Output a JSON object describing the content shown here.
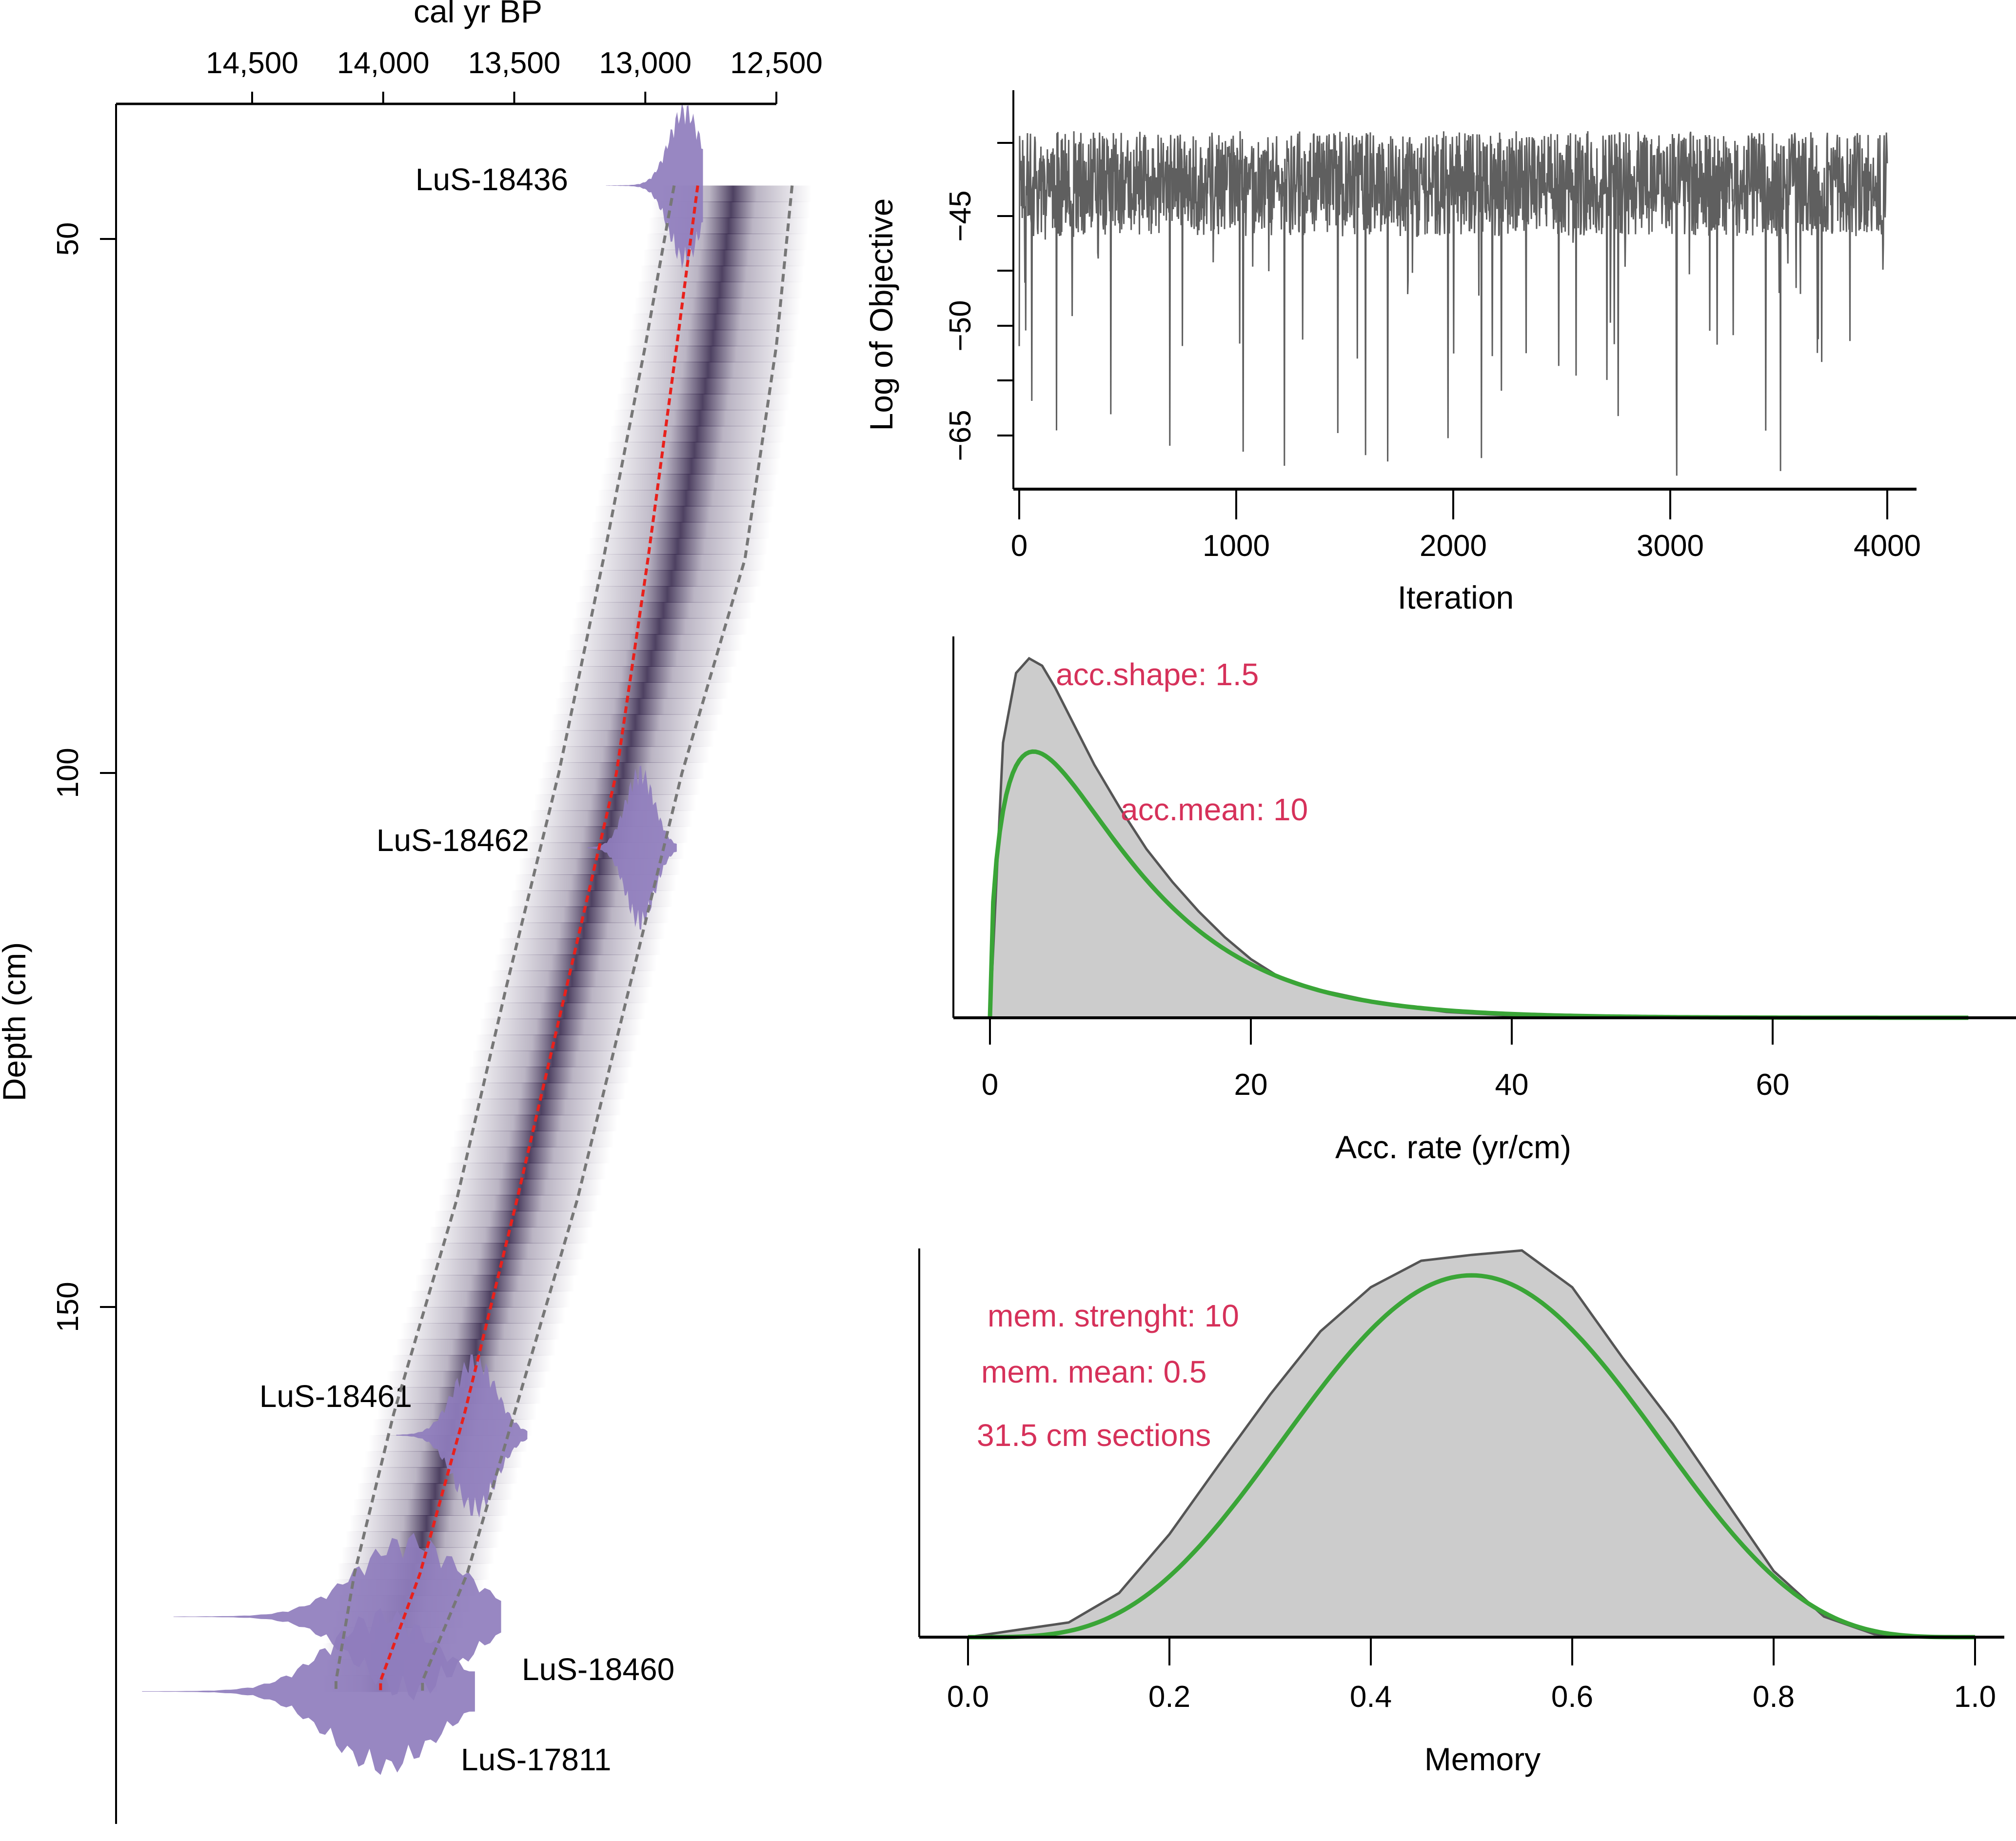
{
  "chart_data": [
    {
      "id": "age-depth",
      "type": "area",
      "title": "",
      "xlabel": "cal yr BP",
      "ylabel": "Depth (cm)",
      "x_axis_position": "top",
      "x_reversed": true,
      "xlim": [
        14800,
        12400
      ],
      "ylim": [
        39,
        190
      ],
      "x_ticks": [
        14500,
        14000,
        13500,
        13000,
        12500
      ],
      "x_tick_labels": [
        "14,500",
        "14,000",
        "13,500",
        "13,000",
        "12,500"
      ],
      "y_ticks": [
        50,
        100,
        150
      ],
      "y_tick_labels": [
        "50",
        "100",
        "150"
      ],
      "model_mean": {
        "depth": [
          45,
          60,
          80,
          100,
          120,
          140,
          160,
          175,
          185
        ],
        "age": [
          12800,
          12880,
          12990,
          13110,
          13300,
          13490,
          13690,
          13860,
          14010
        ]
      },
      "ci_lower": {
        "depth": [
          45,
          60,
          80,
          100,
          120,
          140,
          160,
          175,
          185
        ],
        "age": [
          12440,
          12500,
          12620,
          12860,
          13060,
          13260,
          13500,
          13680,
          13850
        ]
      },
      "ci_upper": {
        "depth": [
          45,
          60,
          80,
          100,
          120,
          140,
          160,
          175,
          185
        ],
        "age": [
          12890,
          13000,
          13160,
          13330,
          13530,
          13720,
          13960,
          14110,
          14180
        ]
      },
      "dates": [
        {
          "label": "LuS-18436",
          "depth": 45,
          "age_mode": 12850,
          "age_min": 12780,
          "age_max": 13150
        },
        {
          "label": "LuS-18462",
          "depth": 107,
          "age_mode": 13020,
          "age_min": 12880,
          "age_max": 13220
        },
        {
          "label": "LuS-18461",
          "depth": 162,
          "age_mode": 13650,
          "age_min": 13450,
          "age_max": 13950
        },
        {
          "label": "LuS-18460",
          "depth": 179,
          "age_mode": 13900,
          "age_min": 13550,
          "age_max": 14800
        },
        {
          "label": "LuS-17811",
          "depth": 186,
          "age_mode": 14000,
          "age_min": 13650,
          "age_max": 14920
        }
      ],
      "colors": {
        "dates": "#8f7dbd",
        "band": "#3b2a55",
        "mean": "#e8211c",
        "ci": "#777777"
      }
    },
    {
      "id": "log-objective",
      "type": "line",
      "xlabel": "Iteration",
      "ylabel": "Log of Objective",
      "xlim": [
        -150,
        4150
      ],
      "ylim": [
        -68.5,
        -40
      ],
      "x_ticks": [
        0,
        1000,
        2000,
        3000,
        4000
      ],
      "x_tick_labels": [
        "0",
        "1000",
        "2000",
        "3000",
        "4000"
      ],
      "y_ticks": [
        -42.5,
        -45,
        -47.5,
        -50,
        -52.5,
        -65
      ],
      "y_tick_labels": [
        "",
        "−45",
        "",
        "−50",
        "",
        "−65"
      ],
      "series_summary": {
        "iterations": 4000,
        "typical_range": [
          -49,
          -41.5
        ],
        "min_spikes": [
          -66.5,
          -68,
          -67.6,
          -67.3,
          -67.2,
          -66.7
        ],
        "color": "#5f5f5f"
      }
    },
    {
      "id": "acc-rate",
      "type": "area",
      "xlabel": "Acc. rate (yr/cm)",
      "ylabel": "",
      "xlim": [
        -5,
        77
      ],
      "x_ticks": [
        0,
        20,
        40,
        60
      ],
      "x_tick_labels": [
        "0",
        "20",
        "40",
        "60"
      ],
      "posterior": {
        "x": [
          0,
          1,
          2,
          3,
          4,
          5,
          6,
          8,
          10,
          12,
          14,
          16,
          18,
          20,
          22,
          25,
          30,
          35,
          40,
          50,
          60,
          75
        ],
        "y": [
          0,
          0.075,
          0.094,
          0.098,
          0.096,
          0.09,
          0.083,
          0.069,
          0.057,
          0.046,
          0.037,
          0.029,
          0.022,
          0.016,
          0.0115,
          0.0078,
          0.004,
          0.0016,
          0.0006,
          0.0001,
          0,
          0
        ]
      },
      "prior": {
        "shape": 1.5,
        "mean": 10,
        "color": "#3aa537"
      },
      "annotations": [
        "acc.shape: 1.5",
        "acc.mean: 10"
      ]
    },
    {
      "id": "memory",
      "type": "area",
      "xlabel": "Memory",
      "ylabel": "",
      "xlim": [
        -0.02,
        1.03
      ],
      "x_ticks": [
        0.0,
        0.2,
        0.4,
        0.6,
        0.8,
        1.0
      ],
      "x_tick_labels": [
        "0.0",
        "0.2",
        "0.4",
        "0.6",
        "0.8",
        "1.0"
      ],
      "posterior": {
        "x": [
          0,
          0.05,
          0.1,
          0.15,
          0.2,
          0.25,
          0.3,
          0.35,
          0.4,
          0.45,
          0.5,
          0.55,
          0.6,
          0.65,
          0.7,
          0.75,
          0.8,
          0.85,
          0.9,
          0.95,
          1.0
        ],
        "y": [
          0,
          0.05,
          0.1,
          0.3,
          0.7,
          1.18,
          1.65,
          2.08,
          2.38,
          2.56,
          2.6,
          2.63,
          2.38,
          1.9,
          1.45,
          0.95,
          0.45,
          0.14,
          0.02,
          0,
          0
        ]
      },
      "prior": {
        "strength": 10,
        "mean": 0.5,
        "color": "#3aa537"
      },
      "annotations": [
        "mem. strenght: 10",
        "mem. mean: 0.5",
        "31.5 cm sections"
      ]
    }
  ],
  "labels": {
    "p1_xlabel": "cal yr BP",
    "p1_ylabel": "Depth (cm)",
    "p2_xlabel": "Iteration",
    "p2_ylabel": "Log of Objective",
    "p3_xlabel": "Acc. rate (yr/cm)",
    "p4_xlabel": "Memory"
  }
}
